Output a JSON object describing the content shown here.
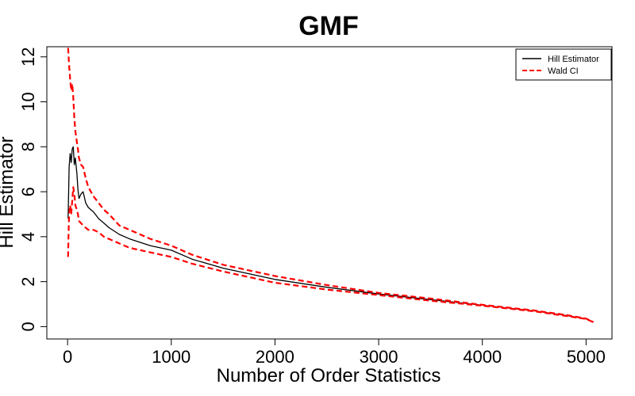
{
  "chart_data": {
    "type": "line",
    "title": "GMF",
    "xlabel": "Number of Order Statistics",
    "ylabel": "Hill Estimator",
    "xlim": [
      -200,
      5250
    ],
    "ylim": [
      -0.55,
      12.45
    ],
    "xticks": [
      0,
      1000,
      2000,
      3000,
      4000,
      5000
    ],
    "xtick_labels": [
      "0",
      "1000",
      "2000",
      "3000",
      "4000",
      "5000"
    ],
    "yticks": [
      0,
      2,
      4,
      6,
      8,
      10,
      12
    ],
    "ytick_labels": [
      "0",
      "2",
      "4",
      "6",
      "8",
      "10",
      "12"
    ],
    "grid": false,
    "legend_position": "top-right",
    "series": [
      {
        "name": "Hill Estimator",
        "color": "#000000",
        "style": "solid",
        "x": [
          5,
          15,
          25,
          35,
          45,
          55,
          65,
          75,
          90,
          100,
          110,
          130,
          150,
          175,
          200,
          250,
          300,
          350,
          400,
          500,
          600,
          800,
          1000,
          1200,
          1500,
          2000,
          2500,
          3000,
          3500,
          4000,
          4500,
          4800,
          5000,
          5070
        ],
        "y": [
          4.8,
          7.1,
          7.7,
          7.3,
          7.9,
          8.0,
          7.2,
          7.5,
          6.8,
          6.1,
          5.7,
          5.9,
          6.0,
          5.5,
          5.3,
          5.1,
          4.8,
          4.6,
          4.4,
          4.1,
          3.9,
          3.6,
          3.4,
          3.0,
          2.6,
          2.1,
          1.75,
          1.45,
          1.2,
          0.95,
          0.7,
          0.5,
          0.35,
          0.2
        ]
      },
      {
        "name": "Wald CI",
        "color": "#ff0000",
        "style": "dashed",
        "x": [
          5,
          15,
          25,
          35,
          45,
          55,
          65,
          75,
          90,
          100,
          110,
          130,
          150,
          175,
          200,
          250,
          300,
          350,
          400,
          500,
          600,
          800,
          1000,
          1200,
          1500,
          2000,
          2500,
          3000,
          3500,
          4000,
          4500,
          4800,
          5000,
          5070
        ],
        "y": [
          12.4,
          11.6,
          11.0,
          10.5,
          10.8,
          10.2,
          9.3,
          8.7,
          8.2,
          7.9,
          7.5,
          7.2,
          7.1,
          6.6,
          6.2,
          5.8,
          5.5,
          5.2,
          5.0,
          4.5,
          4.3,
          3.9,
          3.6,
          3.2,
          2.75,
          2.25,
          1.85,
          1.5,
          1.25,
          0.97,
          0.72,
          0.52,
          0.36,
          0.2
        ]
      },
      {
        "name": "",
        "color": "#ff0000",
        "style": "dashed",
        "x": [
          5,
          10,
          15,
          25,
          35,
          45,
          55,
          65,
          75,
          90,
          100,
          110,
          130,
          150,
          175,
          200,
          250,
          300,
          350,
          400,
          500,
          600,
          800,
          1000,
          1200,
          1500,
          2000,
          2500,
          3000,
          3500,
          4000,
          4500,
          4800,
          5000,
          5070
        ],
        "y": [
          3.1,
          4.2,
          5.0,
          5.4,
          5.0,
          5.6,
          6.2,
          5.9,
          5.4,
          5.2,
          5.0,
          4.7,
          4.6,
          4.5,
          4.4,
          4.3,
          4.3,
          4.2,
          4.0,
          3.9,
          3.7,
          3.5,
          3.3,
          3.1,
          2.8,
          2.45,
          1.95,
          1.65,
          1.4,
          1.15,
          0.93,
          0.68,
          0.48,
          0.34,
          0.2
        ]
      }
    ],
    "legend": [
      {
        "label": "Hill Estimator",
        "color": "#000000",
        "style": "solid"
      },
      {
        "label": "Wald CI",
        "color": "#ff0000",
        "style": "dashed"
      }
    ]
  }
}
